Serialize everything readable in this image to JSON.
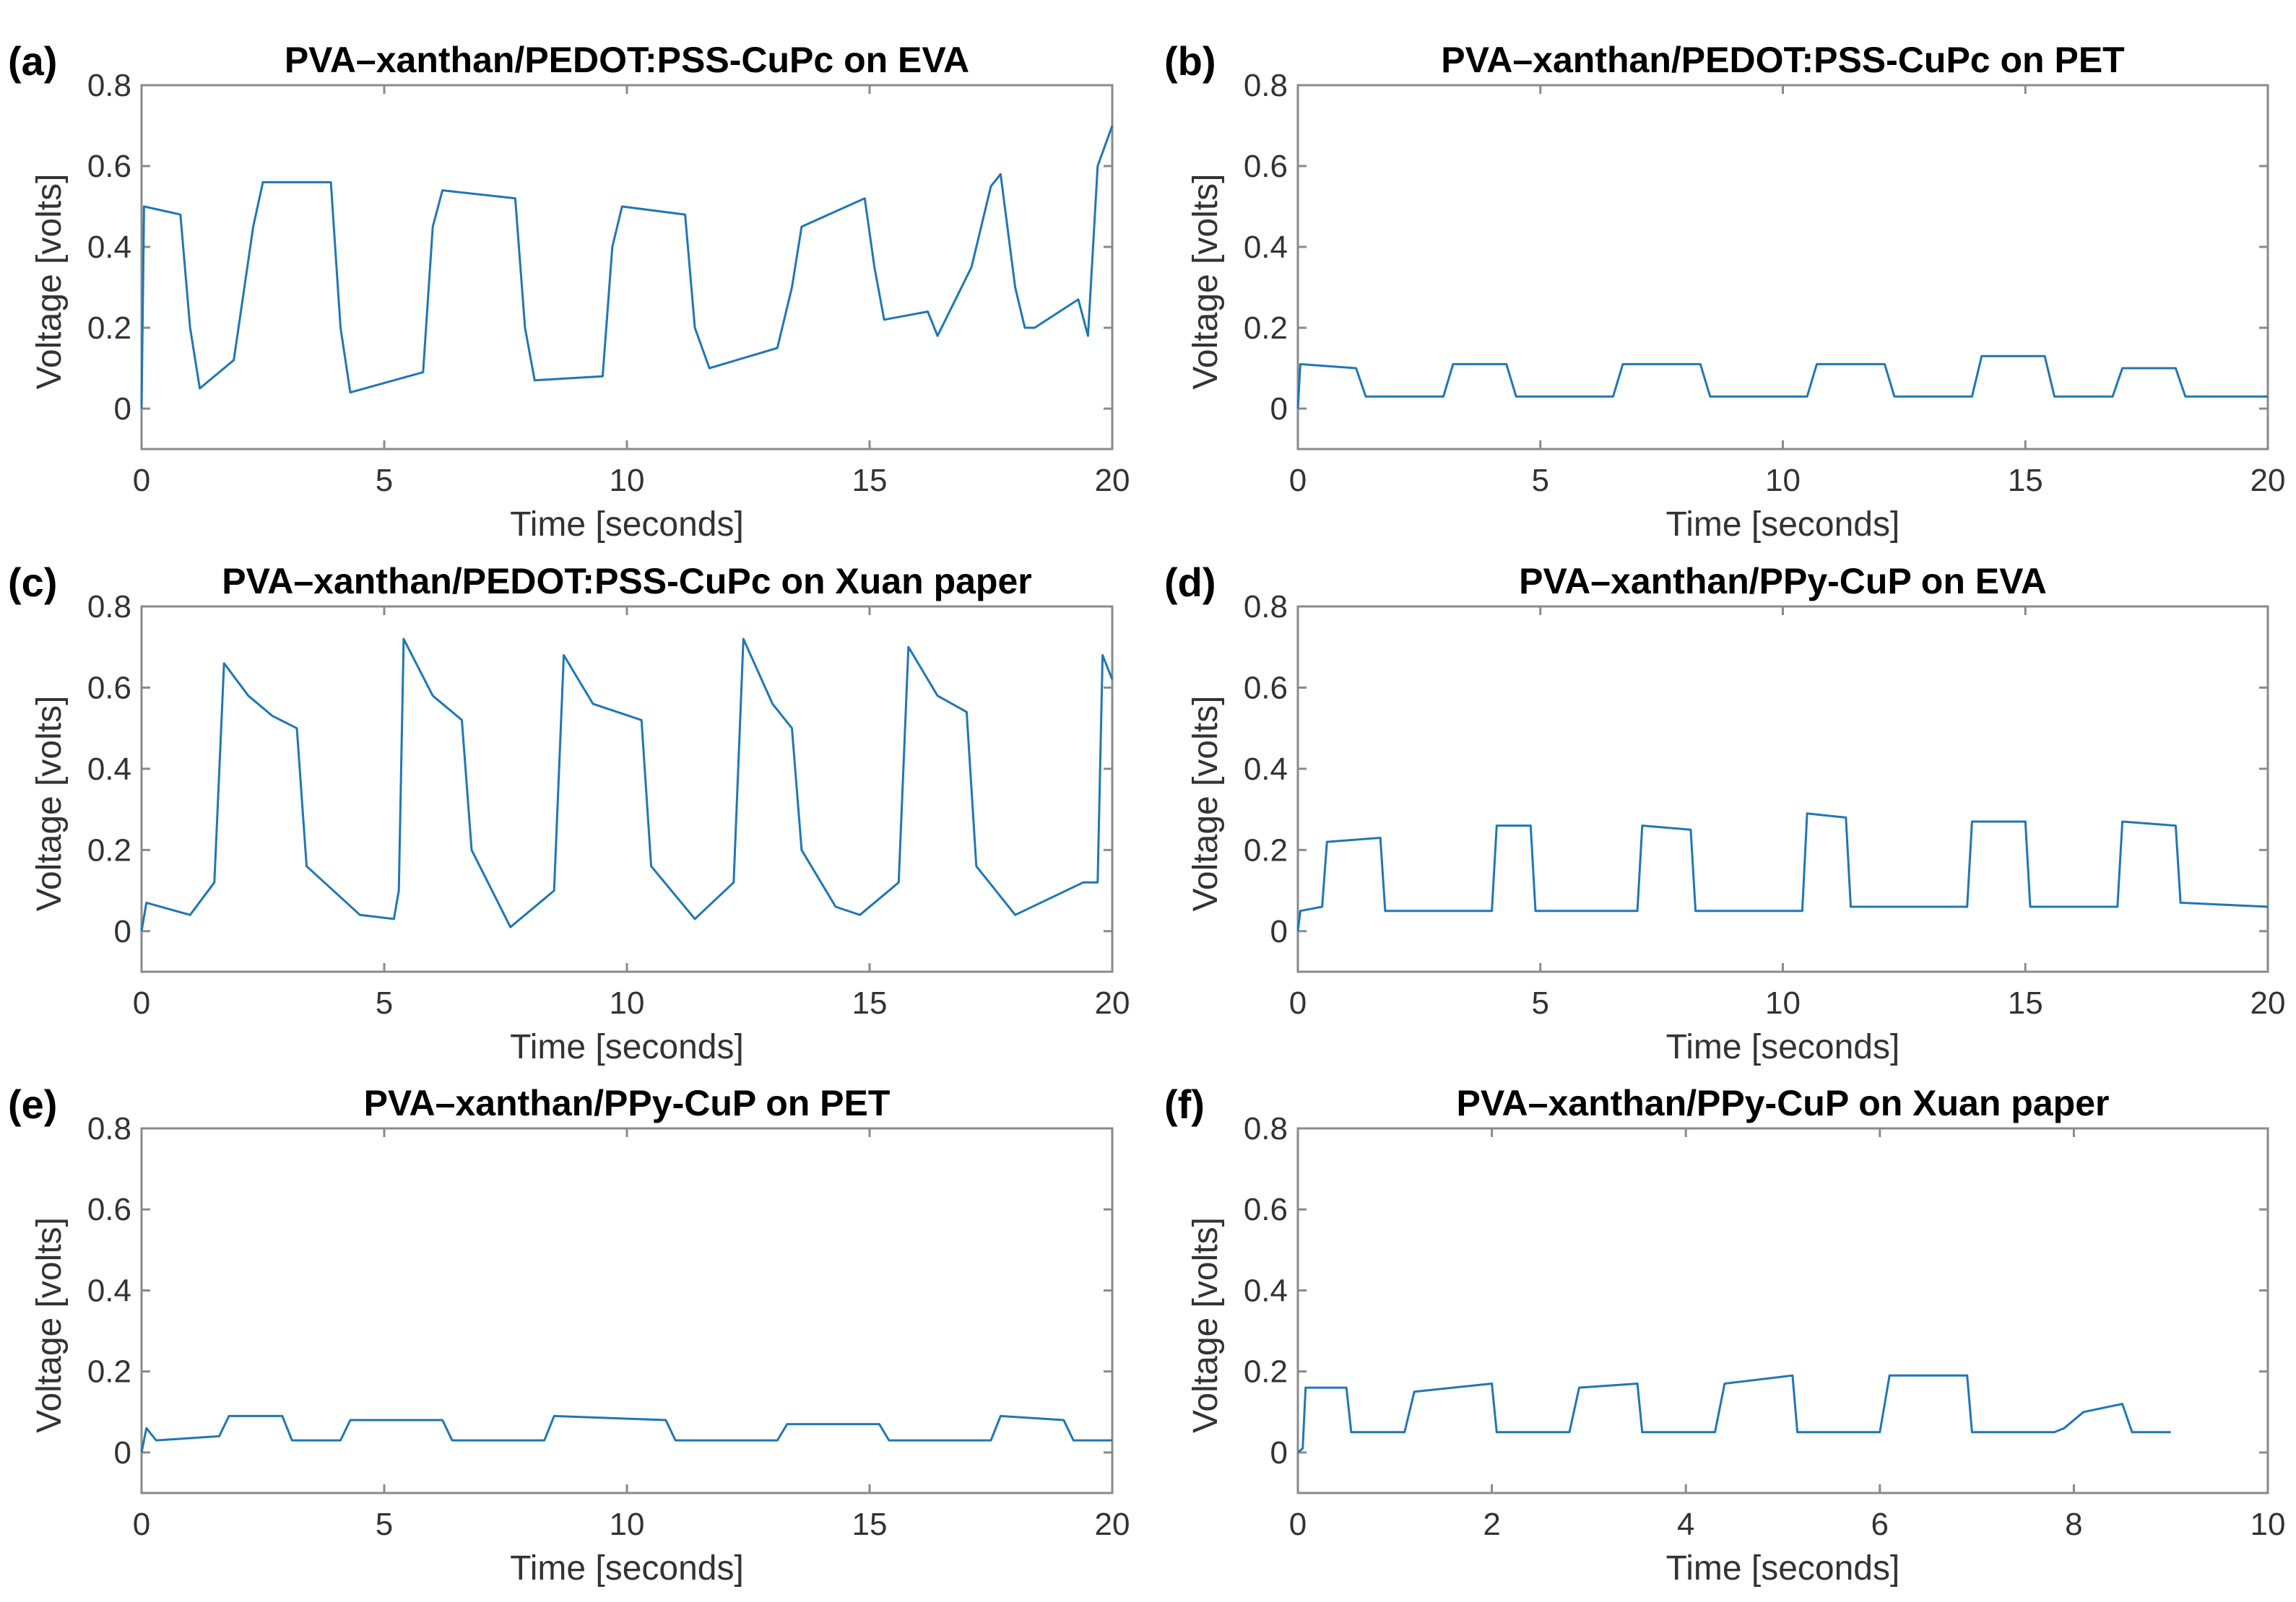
{
  "colors": {
    "series": "#1f77b4"
  },
  "chart_data": [
    {
      "panel": "(a)",
      "type": "line",
      "title": "PVA–xanthan/PEDOT:PSS-CuPc on EVA",
      "xlabel": "Time [seconds]",
      "ylabel": "Voltage [volts]",
      "xlim": [
        0,
        20
      ],
      "ylim": [
        -0.1,
        0.8
      ],
      "xticks": [
        0,
        5,
        10,
        15,
        20
      ],
      "yticks": [
        0,
        0.2,
        0.4,
        0.6,
        0.8
      ],
      "xtick_labels": [
        "0",
        "5",
        "10",
        "15",
        "20"
      ],
      "ytick_labels": [
        "0",
        "0.2",
        "0.4",
        "0.6",
        "0.8"
      ],
      "series": [
        {
          "name": "voltage",
          "x": [
            0,
            0.05,
            0.8,
            1.0,
            1.2,
            1.9,
            2.3,
            2.5,
            3.9,
            4.1,
            4.3,
            5.8,
            6.0,
            6.2,
            7.7,
            7.9,
            8.1,
            9.5,
            9.7,
            9.9,
            11.2,
            11.4,
            11.7,
            13.1,
            13.4,
            13.6,
            14.9,
            15.1,
            15.3,
            16.2,
            16.4,
            17.1,
            17.5,
            17.7,
            18.0,
            18.2,
            18.4,
            19.3,
            19.5,
            19.7,
            20.0
          ],
          "y": [
            0.0,
            0.5,
            0.48,
            0.2,
            0.05,
            0.12,
            0.45,
            0.56,
            0.56,
            0.2,
            0.04,
            0.09,
            0.45,
            0.54,
            0.52,
            0.2,
            0.07,
            0.08,
            0.4,
            0.5,
            0.48,
            0.2,
            0.1,
            0.15,
            0.3,
            0.45,
            0.52,
            0.35,
            0.22,
            0.24,
            0.18,
            0.35,
            0.55,
            0.58,
            0.3,
            0.2,
            0.2,
            0.27,
            0.18,
            0.6,
            0.7
          ]
        }
      ]
    },
    {
      "panel": "(b)",
      "type": "line",
      "title": "PVA–xanthan/PEDOT:PSS-CuPc on PET",
      "xlabel": "Time [seconds]",
      "ylabel": "Voltage [volts]",
      "xlim": [
        0,
        20
      ],
      "ylim": [
        -0.1,
        0.8
      ],
      "xticks": [
        0,
        5,
        10,
        15,
        20
      ],
      "yticks": [
        0,
        0.2,
        0.4,
        0.6,
        0.8
      ],
      "xtick_labels": [
        "0",
        "5",
        "10",
        "15",
        "20"
      ],
      "ytick_labels": [
        "0",
        "0.2",
        "0.4",
        "0.6",
        "0.8"
      ],
      "series": [
        {
          "name": "voltage",
          "x": [
            0,
            0.05,
            1.2,
            1.4,
            3.0,
            3.2,
            4.3,
            4.5,
            6.5,
            6.7,
            8.3,
            8.5,
            10.5,
            10.7,
            12.1,
            12.3,
            13.9,
            14.1,
            15.4,
            15.6,
            16.8,
            17.0,
            18.1,
            18.3,
            20.0
          ],
          "y": [
            0.0,
            0.11,
            0.1,
            0.03,
            0.03,
            0.11,
            0.11,
            0.03,
            0.03,
            0.11,
            0.11,
            0.03,
            0.03,
            0.11,
            0.11,
            0.03,
            0.03,
            0.13,
            0.13,
            0.03,
            0.03,
            0.1,
            0.1,
            0.03,
            0.03
          ]
        }
      ]
    },
    {
      "panel": "(c)",
      "type": "line",
      "title": "PVA–xanthan/PEDOT:PSS-CuPc on Xuan paper",
      "xlabel": "Time [seconds]",
      "ylabel": "Voltage [volts]",
      "xlim": [
        0,
        20
      ],
      "ylim": [
        -0.1,
        0.8
      ],
      "xticks": [
        0,
        5,
        10,
        15,
        20
      ],
      "yticks": [
        0,
        0.2,
        0.4,
        0.6,
        0.8
      ],
      "xtick_labels": [
        "0",
        "5",
        "10",
        "15",
        "20"
      ],
      "ytick_labels": [
        "0",
        "0.2",
        "0.4",
        "0.6",
        "0.8"
      ],
      "series": [
        {
          "name": "voltage",
          "x": [
            0,
            0.1,
            1.0,
            1.5,
            1.7,
            2.2,
            2.7,
            3.2,
            3.4,
            4.5,
            5.2,
            5.3,
            5.4,
            6.0,
            6.6,
            6.8,
            7.6,
            8.5,
            8.7,
            9.3,
            10.3,
            10.5,
            11.4,
            12.2,
            12.4,
            13.0,
            13.4,
            13.6,
            14.3,
            14.8,
            15.6,
            15.8,
            16.4,
            17.0,
            17.2,
            18.0,
            19.4,
            19.7,
            19.8,
            20.0
          ],
          "y": [
            0.0,
            0.07,
            0.04,
            0.12,
            0.66,
            0.58,
            0.53,
            0.5,
            0.16,
            0.04,
            0.03,
            0.1,
            0.72,
            0.58,
            0.52,
            0.2,
            0.01,
            0.1,
            0.68,
            0.56,
            0.52,
            0.16,
            0.03,
            0.12,
            0.72,
            0.56,
            0.5,
            0.2,
            0.06,
            0.04,
            0.12,
            0.7,
            0.58,
            0.54,
            0.16,
            0.04,
            0.12,
            0.12,
            0.68,
            0.62
          ]
        }
      ]
    },
    {
      "panel": "(d)",
      "type": "line",
      "title": "PVA–xanthan/PPy-CuP on EVA",
      "xlabel": "Time [seconds]",
      "ylabel": "Voltage [volts]",
      "xlim": [
        0,
        20
      ],
      "ylim": [
        -0.1,
        0.8
      ],
      "xticks": [
        0,
        5,
        10,
        15,
        20
      ],
      "yticks": [
        0,
        0.2,
        0.4,
        0.6,
        0.8
      ],
      "xtick_labels": [
        "0",
        "5",
        "10",
        "15",
        "20"
      ],
      "ytick_labels": [
        "0",
        "0.2",
        "0.4",
        "0.6",
        "0.8"
      ],
      "series": [
        {
          "name": "voltage",
          "x": [
            0,
            0.05,
            0.5,
            0.6,
            1.7,
            1.8,
            4.0,
            4.1,
            4.8,
            4.9,
            7.0,
            7.1,
            8.1,
            8.2,
            10.4,
            10.5,
            11.3,
            11.4,
            13.8,
            13.9,
            15.0,
            15.1,
            16.9,
            17.0,
            18.1,
            18.2,
            20.0
          ],
          "y": [
            0.0,
            0.05,
            0.06,
            0.22,
            0.23,
            0.05,
            0.05,
            0.26,
            0.26,
            0.05,
            0.05,
            0.26,
            0.25,
            0.05,
            0.05,
            0.29,
            0.28,
            0.06,
            0.06,
            0.27,
            0.27,
            0.06,
            0.06,
            0.27,
            0.26,
            0.07,
            0.06
          ]
        }
      ]
    },
    {
      "panel": "(e)",
      "type": "line",
      "title": "PVA–xanthan/PPy-CuP on PET",
      "xlabel": "Time [seconds]",
      "ylabel": "Voltage [volts]",
      "xlim": [
        0,
        20
      ],
      "ylim": [
        -0.1,
        0.8
      ],
      "xticks": [
        0,
        5,
        10,
        15,
        20
      ],
      "yticks": [
        0,
        0.2,
        0.4,
        0.6,
        0.8
      ],
      "xtick_labels": [
        "0",
        "5",
        "10",
        "15",
        "20"
      ],
      "ytick_labels": [
        "0",
        "0.2",
        "0.4",
        "0.6",
        "0.8"
      ],
      "series": [
        {
          "name": "voltage",
          "x": [
            0,
            0.1,
            0.3,
            1.6,
            1.8,
            2.9,
            3.1,
            4.1,
            4.3,
            6.2,
            6.4,
            8.3,
            8.5,
            10.8,
            11.0,
            13.1,
            13.3,
            15.2,
            15.4,
            17.5,
            17.7,
            19.0,
            19.2,
            20.0
          ],
          "y": [
            0.0,
            0.06,
            0.03,
            0.04,
            0.09,
            0.09,
            0.03,
            0.03,
            0.08,
            0.08,
            0.03,
            0.03,
            0.09,
            0.08,
            0.03,
            0.03,
            0.07,
            0.07,
            0.03,
            0.03,
            0.09,
            0.08,
            0.03,
            0.03
          ]
        }
      ]
    },
    {
      "panel": "(f)",
      "type": "line",
      "title": "PVA–xanthan/PPy-CuP on Xuan paper",
      "xlabel": "Time [seconds]",
      "ylabel": "Voltage [volts]",
      "xlim": [
        0,
        10
      ],
      "ylim": [
        -0.1,
        0.8
      ],
      "xticks": [
        0,
        2,
        4,
        6,
        8,
        10
      ],
      "yticks": [
        0,
        0.2,
        0.4,
        0.6,
        0.8
      ],
      "xtick_labels": [
        "0",
        "2",
        "4",
        "6",
        "8",
        "10"
      ],
      "ytick_labels": [
        "0",
        "0.2",
        "0.4",
        "0.6",
        "0.8"
      ],
      "series": [
        {
          "name": "voltage",
          "x": [
            0,
            0.05,
            0.08,
            0.5,
            0.55,
            1.1,
            1.2,
            2.0,
            2.05,
            2.8,
            2.9,
            3.5,
            3.55,
            4.3,
            4.4,
            5.1,
            5.15,
            6.0,
            6.1,
            6.9,
            6.95,
            7.8,
            7.9,
            8.1,
            8.5,
            8.6,
            9.0
          ],
          "y": [
            0.0,
            0.01,
            0.16,
            0.16,
            0.05,
            0.05,
            0.15,
            0.17,
            0.05,
            0.05,
            0.16,
            0.17,
            0.05,
            0.05,
            0.17,
            0.19,
            0.05,
            0.05,
            0.19,
            0.19,
            0.05,
            0.05,
            0.06,
            0.1,
            0.12,
            0.05,
            0.05
          ]
        }
      ]
    }
  ]
}
